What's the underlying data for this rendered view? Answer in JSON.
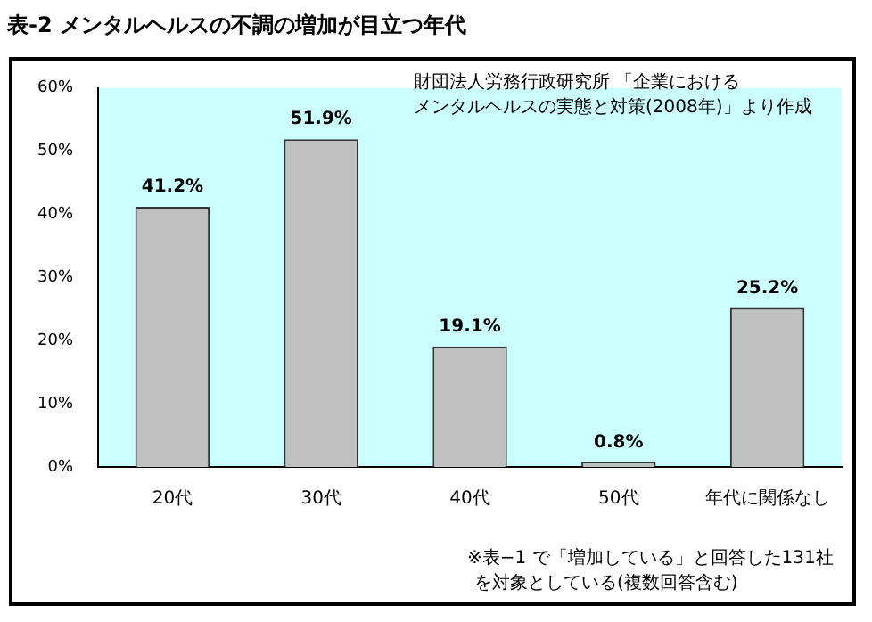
{
  "chart_data": {
    "type": "bar",
    "title": "表-2 メンタルヘルスの不調の増加が目立つ年代",
    "categories": [
      "20代",
      "30代",
      "40代",
      "50代",
      "年代に関係なし"
    ],
    "values": [
      41.2,
      51.9,
      19.1,
      0.8,
      25.2
    ],
    "value_labels": [
      "41.2%",
      "51.9%",
      "19.1%",
      "0.8%",
      "25.2%"
    ],
    "color": "#c0c0c0",
    "ylim": [
      0,
      60
    ],
    "yticks": [
      {
        "value": 0,
        "label": "0%"
      },
      {
        "value": 10,
        "label": "10%"
      },
      {
        "value": 20,
        "label": "20%"
      },
      {
        "value": 30,
        "label": "30%"
      },
      {
        "value": 40,
        "label": "40%"
      },
      {
        "value": 50,
        "label": "50%"
      },
      {
        "value": 60,
        "label": "60%"
      }
    ],
    "grid": false,
    "legend": false,
    "annotations": [
      "財団法人労務行政研究所 「企業における",
      "メンタルヘルスの実態と対策(2008年)」より作成",
      "※表−1 で「増加している」と回答した131社",
      "を対象としている(複数回答含む)"
    ]
  }
}
